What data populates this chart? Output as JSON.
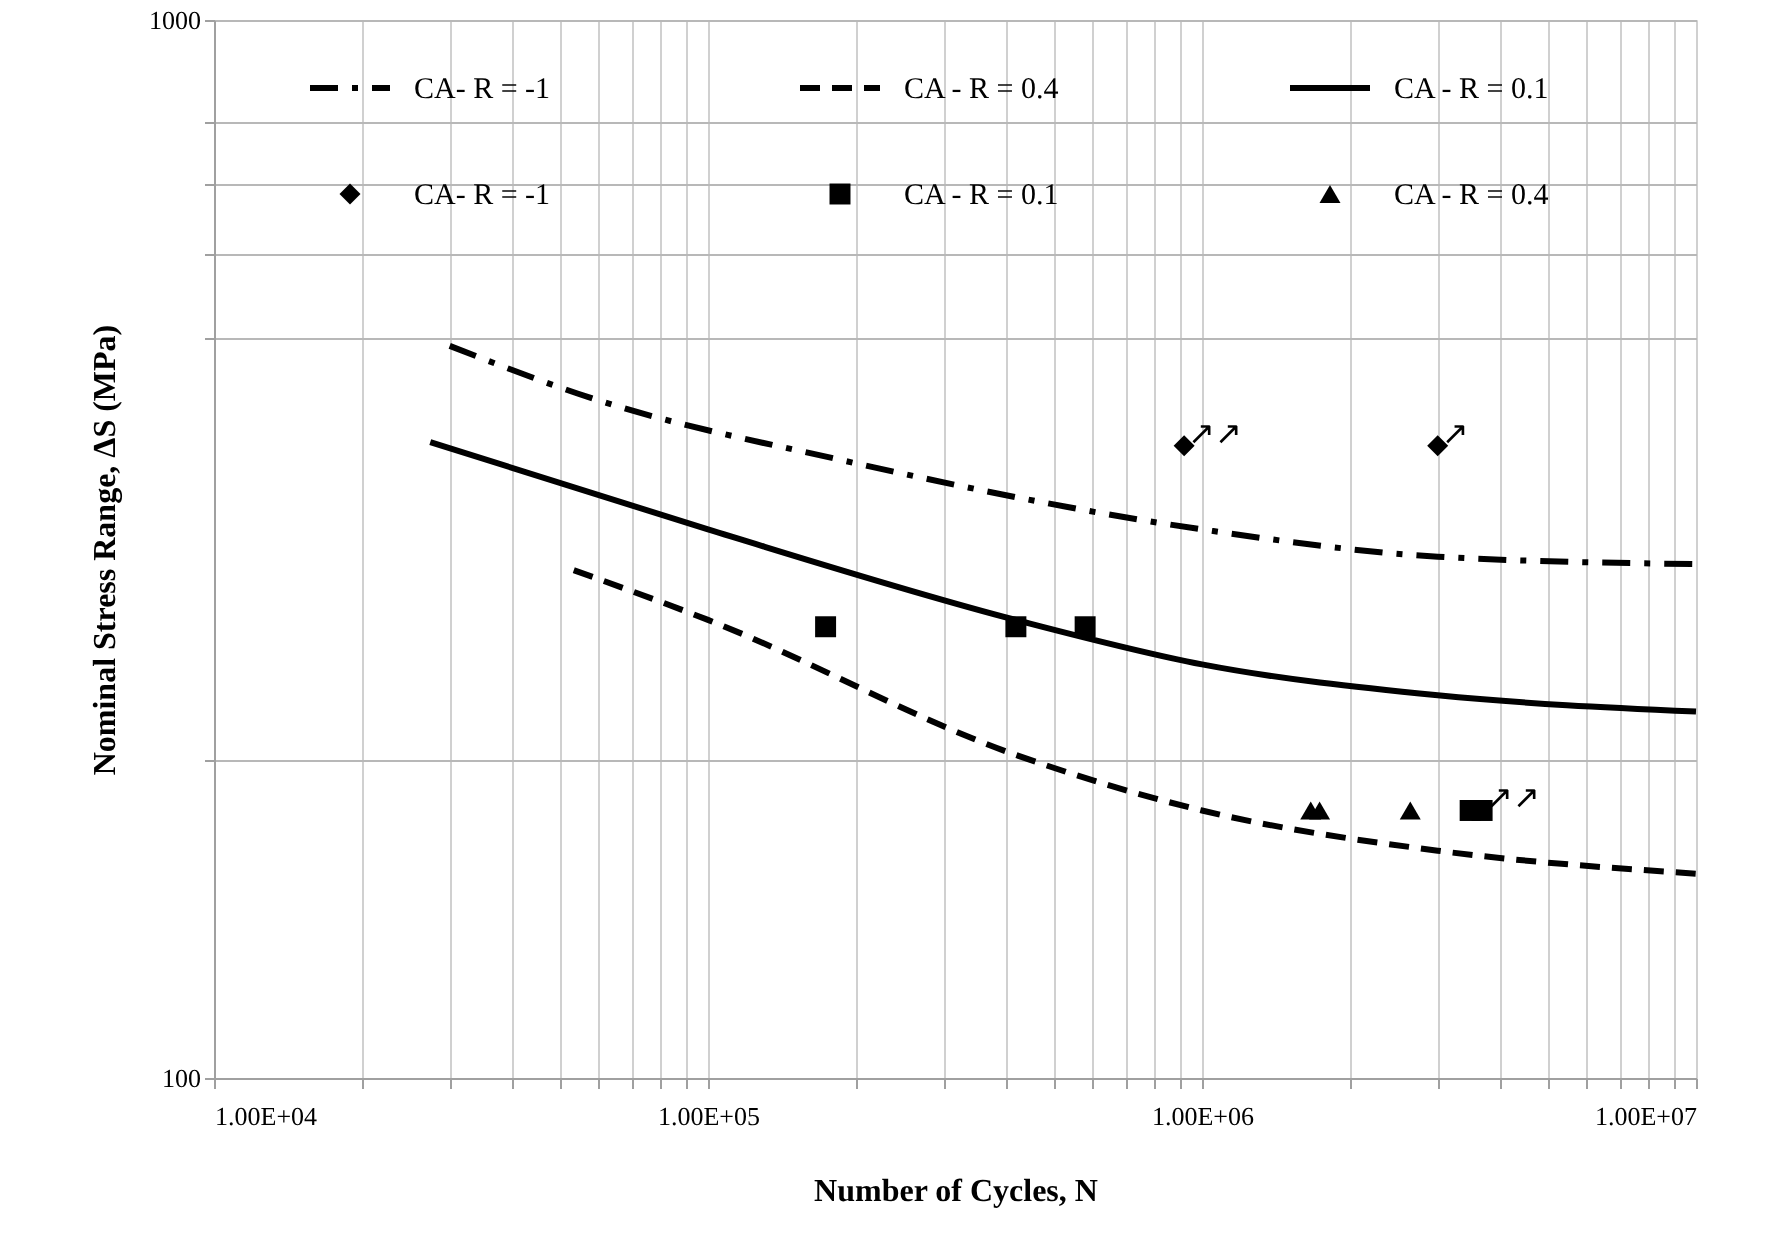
{
  "chart_data": {
    "type": "line",
    "xlabel": "Number of Cycles, N",
    "ylabel": "Nominal Stress Range, ΔS (MPa)",
    "log": "xy",
    "grid": true,
    "legend": "top",
    "xlim": [
      10000,
      10000000
    ],
    "ylim": [
      100,
      1000
    ],
    "xticks": [
      {
        "value": 10000,
        "label": "1.00E+04"
      },
      {
        "value": 20000,
        "label": null
      },
      {
        "value": 30000,
        "label": null
      },
      {
        "value": 40000,
        "label": null
      },
      {
        "value": 50000,
        "label": null
      },
      {
        "value": 60000,
        "label": null
      },
      {
        "value": 70000,
        "label": null
      },
      {
        "value": 80000,
        "label": null
      },
      {
        "value": 90000,
        "label": null
      },
      {
        "value": 100000,
        "label": "1.00E+05"
      },
      {
        "value": 200000,
        "label": null
      },
      {
        "value": 300000,
        "label": null
      },
      {
        "value": 400000,
        "label": null
      },
      {
        "value": 500000,
        "label": null
      },
      {
        "value": 600000,
        "label": null
      },
      {
        "value": 700000,
        "label": null
      },
      {
        "value": 800000,
        "label": null
      },
      {
        "value": 900000,
        "label": null
      },
      {
        "value": 1000000,
        "label": "1.00E+06"
      },
      {
        "value": 2000000,
        "label": null
      },
      {
        "value": 3000000,
        "label": null
      },
      {
        "value": 4000000,
        "label": null
      },
      {
        "value": 5000000,
        "label": null
      },
      {
        "value": 6000000,
        "label": null
      },
      {
        "value": 7000000,
        "label": null
      },
      {
        "value": 8000000,
        "label": null
      },
      {
        "value": 9000000,
        "label": null
      },
      {
        "value": 10000000,
        "label": "1.00E+07"
      }
    ],
    "yticks": [
      100,
      {
        "value": 200,
        "label": null
      },
      {
        "value": 500,
        "label": null
      },
      {
        "value": 600,
        "label": null
      },
      {
        "value": 700,
        "label": null
      },
      {
        "value": 800,
        "label": null
      },
      1000
    ],
    "series": [
      {
        "name": "CA- R = -1",
        "line_style": "dashdot",
        "color": "#000000",
        "x": [
          30000,
          60000,
          185000,
          1000000,
          3000000,
          10000000
        ],
        "values": [
          492,
          437,
          384,
          330,
          311,
          306
        ]
      },
      {
        "name": "CA - R = 0.4",
        "line_style": "dashed",
        "color": "#000000",
        "x": [
          53500,
          100000,
          420000,
          1000000,
          3000000,
          10000000
        ],
        "values": [
          302,
          271,
          202,
          179,
          164,
          156
        ]
      },
      {
        "name": "CA - R = 0.1",
        "line_style": "solid",
        "color": "#000000",
        "x": [
          27400,
          100000,
          420000,
          1000000,
          3000000,
          10000000
        ],
        "values": [
          399,
          330,
          271,
          246,
          230,
          222
        ]
      },
      {
        "name": "CA- R = -1",
        "type": "scatter",
        "marker": "diamond",
        "color": "#000000",
        "x": [
          920000,
          3000000
        ],
        "values": [
          396,
          396
        ]
      },
      {
        "name": "CA - R = 0.1",
        "type": "scatter",
        "marker": "square",
        "color": "#000000",
        "x": [
          173000,
          420000,
          580000,
          3490000,
          3690000
        ],
        "values": [
          267,
          267,
          267,
          179,
          179
        ]
      },
      {
        "name": "CA - R = 0.4",
        "type": "scatter",
        "marker": "triangle",
        "color": "#000000",
        "x": [
          1660000,
          1730000,
          2640000
        ],
        "values": [
          179,
          179,
          179
        ]
      }
    ],
    "annotations": [
      {
        "text": "↗↗",
        "x": 920000,
        "y": 396
      },
      {
        "text": "↗",
        "x": 3000000,
        "y": 396
      },
      {
        "text": "↗↗",
        "x": 3690000,
        "y": 179
      }
    ]
  }
}
